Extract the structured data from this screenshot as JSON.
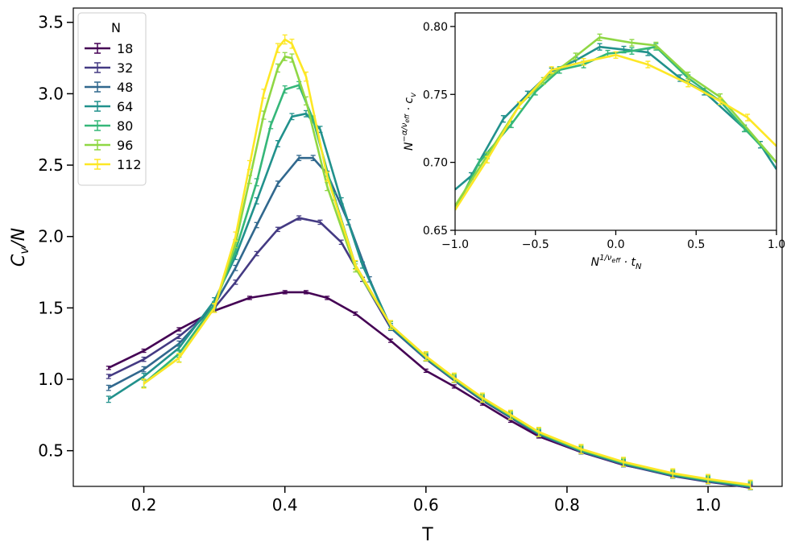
{
  "chart_data": [
    {
      "type": "line",
      "id": "main",
      "xlabel": "T",
      "ylabel_base": "C",
      "ylabel_sub": "v",
      "ylabel_tail": "/N",
      "xlim": [
        0.1,
        1.105
      ],
      "ylim": [
        0.25,
        3.6
      ],
      "xticks": [
        0.2,
        0.4,
        0.6,
        0.8,
        1.0
      ],
      "xtick_labels": [
        "0.2",
        "0.4",
        "0.6",
        "0.8",
        "1.0"
      ],
      "yticks": [
        0.5,
        1.0,
        1.5,
        2.0,
        2.5,
        3.0,
        3.5
      ],
      "ytick_labels": [
        "0.5",
        "1.0",
        "1.5",
        "2.0",
        "2.5",
        "3.0",
        "3.5"
      ],
      "legend": {
        "title": "N",
        "position": "top-left",
        "entries": [
          "18",
          "32",
          "48",
          "64",
          "80",
          "96",
          "112"
        ]
      },
      "colors": [
        "#440154",
        "#443a83",
        "#31688e",
        "#21918c",
        "#35b779",
        "#8fd744",
        "#fde725"
      ],
      "common_tail": {
        "x": [
          0.55,
          0.6,
          0.64,
          0.68,
          0.72,
          0.76,
          0.82,
          0.88,
          0.95,
          1.0,
          1.06
        ],
        "y": [
          1.35,
          1.15,
          1.0,
          0.86,
          0.74,
          0.62,
          0.5,
          0.41,
          0.33,
          0.29,
          0.25
        ]
      },
      "series": [
        {
          "name": "18",
          "x": [
            0.15,
            0.2,
            0.25,
            0.3,
            0.35,
            0.4,
            0.43,
            0.46,
            0.5,
            0.55,
            0.6,
            0.64,
            0.68,
            0.72,
            0.76,
            0.82,
            0.88,
            0.95,
            1.0,
            1.06
          ],
          "y": [
            1.08,
            1.2,
            1.35,
            1.48,
            1.57,
            1.61,
            1.61,
            1.57,
            1.46,
            1.27,
            1.06,
            0.95,
            0.83,
            0.71,
            0.6,
            0.49,
            0.4,
            0.33,
            0.29,
            0.24
          ]
        },
        {
          "name": "32",
          "x": [
            0.15,
            0.2,
            0.25,
            0.3,
            0.33,
            0.36,
            0.39,
            0.42,
            0.45,
            0.48,
            0.51,
            0.55
          ],
          "y": [
            1.02,
            1.14,
            1.3,
            1.5,
            1.68,
            1.88,
            2.05,
            2.13,
            2.1,
            1.96,
            1.7,
            1.36
          ]
        },
        {
          "name": "48",
          "x": [
            0.15,
            0.2,
            0.25,
            0.3,
            0.33,
            0.36,
            0.39,
            0.42,
            0.44,
            0.46,
            0.49,
            0.52,
            0.55
          ],
          "y": [
            0.94,
            1.07,
            1.25,
            1.52,
            1.78,
            2.08,
            2.37,
            2.55,
            2.55,
            2.44,
            2.1,
            1.7,
            1.36
          ]
        },
        {
          "name": "64",
          "x": [
            0.15,
            0.2,
            0.25,
            0.3,
            0.33,
            0.36,
            0.39,
            0.41,
            0.43,
            0.45,
            0.48,
            0.51,
            0.55
          ],
          "y": [
            0.86,
            1.02,
            1.22,
            1.55,
            1.86,
            2.25,
            2.65,
            2.84,
            2.86,
            2.75,
            2.25,
            1.8,
            1.37
          ]
        },
        {
          "name": "80",
          "x": [
            0.2,
            0.25,
            0.3,
            0.33,
            0.36,
            0.38,
            0.4,
            0.42,
            0.44,
            0.47,
            0.5,
            0.55
          ],
          "y": [
            0.97,
            1.18,
            1.52,
            1.9,
            2.38,
            2.78,
            3.03,
            3.06,
            2.82,
            2.28,
            1.8,
            1.38
          ]
        },
        {
          "name": "96",
          "x": [
            0.2,
            0.25,
            0.3,
            0.33,
            0.35,
            0.37,
            0.39,
            0.4,
            0.41,
            0.43,
            0.46,
            0.5,
            0.55
          ],
          "y": [
            0.97,
            1.15,
            1.5,
            1.95,
            2.4,
            2.85,
            3.18,
            3.26,
            3.25,
            2.95,
            2.35,
            1.78,
            1.38
          ]
        },
        {
          "name": "112",
          "x": [
            0.2,
            0.25,
            0.3,
            0.33,
            0.35,
            0.37,
            0.39,
            0.4,
            0.41,
            0.43,
            0.46,
            0.5,
            0.55
          ],
          "y": [
            0.97,
            1.15,
            1.5,
            2.0,
            2.5,
            3.0,
            3.32,
            3.38,
            3.35,
            3.12,
            2.42,
            1.8,
            1.38
          ]
        }
      ]
    },
    {
      "type": "line",
      "id": "inset",
      "xlabel_base": "N",
      "xlabel_sup": "1/ν",
      "xlabel_sup_sub": "eff",
      "xlabel_tail": " · t",
      "xlabel_tail_sub": "N",
      "ylabel_base": "N",
      "ylabel_sup": "−α/ν",
      "ylabel_sup_sub": "eff",
      "ylabel_tail": " · c",
      "ylabel_tail_sub": "v",
      "xlim": [
        -1.0,
        1.0
      ],
      "ylim": [
        0.65,
        0.81
      ],
      "xticks": [
        -1.0,
        -0.5,
        0.0,
        0.5,
        1.0
      ],
      "xtick_labels": [
        "−1.0",
        "−0.5",
        "0.0",
        "0.5",
        "1.0"
      ],
      "yticks": [
        0.65,
        0.7,
        0.75,
        0.8
      ],
      "ytick_labels": [
        "0.65",
        "0.70",
        "0.75",
        "0.80"
      ],
      "series": [
        {
          "name": "64",
          "color": "#21918c",
          "x": [
            -1.0,
            -0.9,
            -0.7,
            -0.55,
            -0.4,
            -0.25,
            -0.1,
            0.05,
            0.2,
            0.4,
            0.55,
            0.8,
            0.9,
            1.0
          ],
          "y": [
            0.68,
            0.69,
            0.732,
            0.75,
            0.767,
            0.775,
            0.785,
            0.783,
            0.781,
            0.762,
            0.752,
            0.725,
            0.713,
            0.695
          ]
        },
        {
          "name": "80",
          "color": "#35b779",
          "x": [
            -1.0,
            -0.85,
            -0.65,
            -0.5,
            -0.35,
            -0.2,
            -0.05,
            0.1,
            0.25,
            0.45,
            0.65,
            0.8,
            1.0
          ],
          "y": [
            0.665,
            0.7,
            0.728,
            0.752,
            0.768,
            0.772,
            0.78,
            0.782,
            0.785,
            0.762,
            0.745,
            0.725,
            0.7
          ]
        },
        {
          "name": "96",
          "color": "#8fd744",
          "x": [
            -1.0,
            -0.8,
            -0.6,
            -0.45,
            -0.25,
            -0.1,
            0.1,
            0.25,
            0.45,
            0.65,
            1.0
          ],
          "y": [
            0.668,
            0.705,
            0.742,
            0.76,
            0.778,
            0.792,
            0.788,
            0.786,
            0.764,
            0.748,
            0.7
          ]
        },
        {
          "name": "112",
          "color": "#fde725",
          "x": [
            -1.0,
            -0.8,
            -0.6,
            -0.4,
            -0.2,
            0.0,
            0.2,
            0.45,
            0.65,
            0.82,
            1.0
          ],
          "y": [
            0.665,
            0.702,
            0.742,
            0.768,
            0.774,
            0.779,
            0.772,
            0.758,
            0.745,
            0.733,
            0.712
          ]
        }
      ]
    }
  ]
}
